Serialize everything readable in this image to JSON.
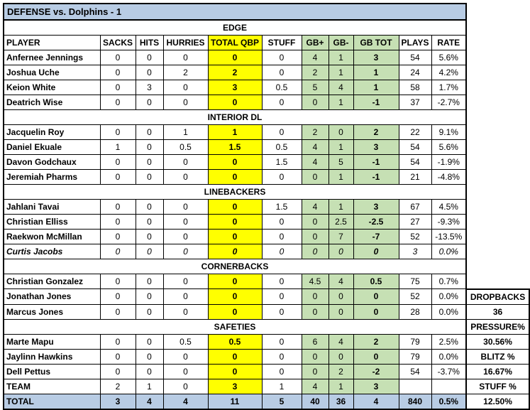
{
  "title": "DEFENSE vs. Dolphins - 1",
  "colors": {
    "band_blue": "#B8CCE4",
    "highlight_yellow": "#FFFF00",
    "highlight_green": "#C6E0B4",
    "border_black": "#000000"
  },
  "table": {
    "columns": [
      "PLAYER",
      "SACKS",
      "HITS",
      "HURRIES",
      "TOTAL QBP",
      "STUFF",
      "GB+",
      "GB-",
      "GB TOT",
      "PLAYS",
      "RATE"
    ],
    "sections": [
      {
        "label": "EDGE",
        "rows": [
          {
            "player": "Anfernee Jennings",
            "values": [
              "0",
              "0",
              "0",
              "0",
              "0",
              "4",
              "1",
              "3",
              "54",
              "5.6%"
            ]
          },
          {
            "player": "Joshua Uche",
            "values": [
              "0",
              "0",
              "2",
              "2",
              "0",
              "2",
              "1",
              "1",
              "24",
              "4.2%"
            ]
          },
          {
            "player": "Keion White",
            "values": [
              "0",
              "3",
              "0",
              "3",
              "0.5",
              "5",
              "4",
              "1",
              "58",
              "1.7%"
            ]
          },
          {
            "player": "Deatrich Wise",
            "values": [
              "0",
              "0",
              "0",
              "0",
              "0",
              "0",
              "1",
              "-1",
              "37",
              "-2.7%"
            ]
          }
        ]
      },
      {
        "label": "INTERIOR DL",
        "rows": [
          {
            "player": "Jacquelin Roy",
            "values": [
              "0",
              "0",
              "1",
              "1",
              "0",
              "2",
              "0",
              "2",
              "22",
              "9.1%"
            ]
          },
          {
            "player": "Daniel Ekuale",
            "values": [
              "1",
              "0",
              "0.5",
              "1.5",
              "0.5",
              "4",
              "1",
              "3",
              "54",
              "5.6%"
            ]
          },
          {
            "player": "Davon Godchaux",
            "values": [
              "0",
              "0",
              "0",
              "0",
              "1.5",
              "4",
              "5",
              "-1",
              "54",
              "-1.9%"
            ]
          },
          {
            "player": "Jeremiah Pharms",
            "values": [
              "0",
              "0",
              "0",
              "0",
              "0",
              "0",
              "1",
              "-1",
              "21",
              "-4.8%"
            ]
          }
        ]
      },
      {
        "label": "LINEBACKERS",
        "rows": [
          {
            "player": "Jahlani Tavai",
            "values": [
              "0",
              "0",
              "0",
              "0",
              "1.5",
              "4",
              "1",
              "3",
              "67",
              "4.5%"
            ]
          },
          {
            "player": "Christian Elliss",
            "values": [
              "0",
              "0",
              "0",
              "0",
              "0",
              "0",
              "2.5",
              "-2.5",
              "27",
              "-9.3%"
            ]
          },
          {
            "player": "Raekwon McMillan",
            "values": [
              "0",
              "0",
              "0",
              "0",
              "0",
              "0",
              "7",
              "-7",
              "52",
              "-13.5%"
            ]
          },
          {
            "player": "Curtis Jacobs",
            "italic": true,
            "values": [
              "0",
              "0",
              "0",
              "0",
              "0",
              "0",
              "0",
              "0",
              "3",
              "0.0%"
            ]
          }
        ]
      },
      {
        "label": "CORNERBACKS",
        "rows": [
          {
            "player": "Christian Gonzalez",
            "values": [
              "0",
              "0",
              "0",
              "0",
              "0",
              "4.5",
              "4",
              "0.5",
              "75",
              "0.7%"
            ]
          },
          {
            "player": "Jonathan Jones",
            "values": [
              "0",
              "0",
              "0",
              "0",
              "0",
              "0",
              "0",
              "0",
              "52",
              "0.0%"
            ]
          },
          {
            "player": "Marcus Jones",
            "values": [
              "0",
              "0",
              "0",
              "0",
              "0",
              "0",
              "0",
              "0",
              "28",
              "0.0%"
            ]
          }
        ]
      },
      {
        "label": "SAFETIES",
        "rows": [
          {
            "player": "Marte Mapu",
            "values": [
              "0",
              "0",
              "0.5",
              "0.5",
              "0",
              "6",
              "4",
              "2",
              "79",
              "2.5%"
            ]
          },
          {
            "player": "Jaylinn Hawkins",
            "values": [
              "0",
              "0",
              "0",
              "0",
              "0",
              "0",
              "0",
              "0",
              "79",
              "0.0%"
            ]
          },
          {
            "player": "Dell Pettus",
            "values": [
              "0",
              "0",
              "0",
              "0",
              "0",
              "0",
              "2",
              "-2",
              "54",
              "-3.7%"
            ]
          }
        ]
      }
    ],
    "team_row": {
      "player": "TEAM",
      "values": [
        "2",
        "1",
        "0",
        "3",
        "1",
        "4",
        "1",
        "3",
        "",
        ""
      ]
    },
    "total_row": {
      "player": "TOTAL",
      "values": [
        "3",
        "4",
        "4",
        "11",
        "5",
        "40",
        "36",
        "4",
        "840",
        "0.5%"
      ]
    }
  },
  "side_panel": {
    "rows": [
      "DROPBACKS",
      "36",
      "PRESSURE%",
      "30.56%",
      "BLITZ %",
      "16.67%",
      "STUFF %",
      "12.50%"
    ]
  }
}
